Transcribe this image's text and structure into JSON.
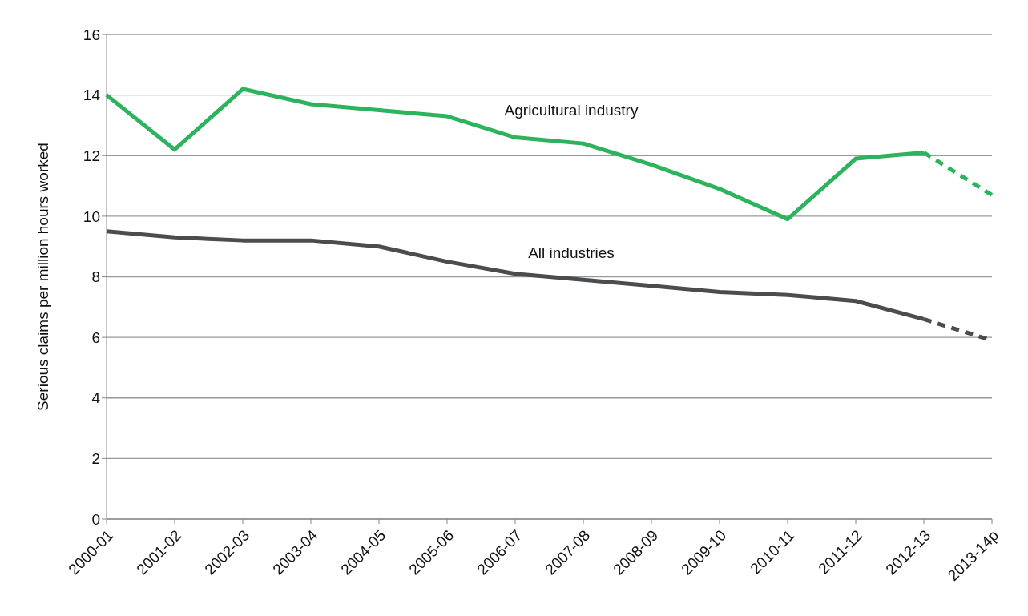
{
  "chart_data": {
    "type": "line",
    "ylabel": "Serious claims per million hours worked",
    "categories": [
      "2000-01",
      "2001-02",
      "2002-03",
      "2003-04",
      "2004-05",
      "2005-06",
      "2006-07",
      "2007-08",
      "2008-09",
      "2009-10",
      "2010-11",
      "2011-12",
      "2012-13",
      "2013-14p"
    ],
    "series": [
      {
        "name": "Agricultural industry",
        "color": "#2db35d",
        "line_style": "solid",
        "values": [
          14.0,
          12.2,
          14.2,
          13.7,
          13.5,
          13.3,
          12.6,
          12.4,
          11.7,
          10.9,
          9.9,
          11.9,
          12.1,
          null
        ]
      },
      {
        "color": "#2db35d",
        "line_style": "dashed",
        "values": [
          null,
          null,
          null,
          null,
          null,
          null,
          null,
          null,
          null,
          null,
          null,
          null,
          12.1,
          10.7
        ]
      },
      {
        "name": "All industries",
        "color": "#4a4d50",
        "line_style": "solid",
        "values": [
          9.5,
          9.3,
          9.2,
          9.2,
          9.0,
          8.5,
          8.1,
          7.9,
          7.7,
          7.5,
          7.4,
          7.2,
          6.6,
          null
        ]
      },
      {
        "color": "#4a4d50",
        "line_style": "dashed",
        "values": [
          null,
          null,
          null,
          null,
          null,
          null,
          null,
          null,
          null,
          null,
          null,
          null,
          6.6,
          5.9
        ]
      }
    ],
    "ylim": [
      0,
      16
    ],
    "yticks": [
      0,
      2,
      4,
      6,
      8,
      10,
      12,
      14,
      16
    ],
    "grid": "y",
    "legend": false,
    "marker": "none"
  }
}
